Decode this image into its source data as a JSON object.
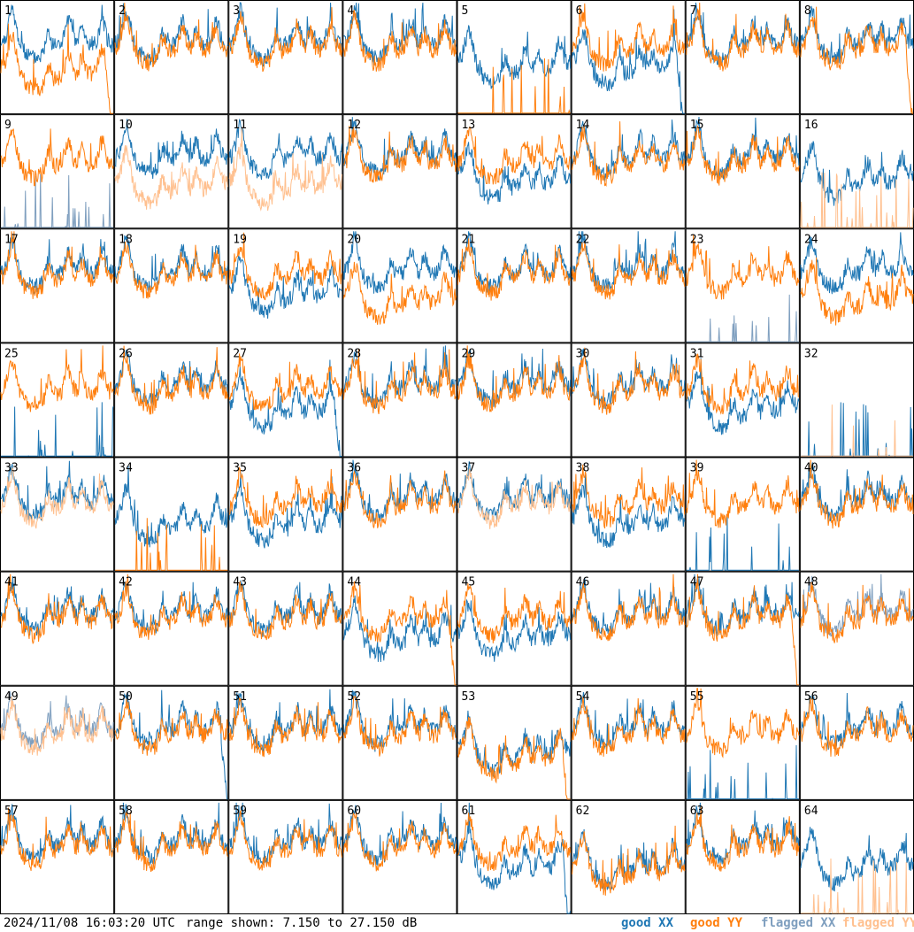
{
  "footer": {
    "timestamp": "2024/11/08 16:03:20 UTC",
    "range_text": "range shown: 7.150 to 27.150 dB"
  },
  "legend": [
    {
      "label": "good XX",
      "color": "#1f77b4"
    },
    {
      "label": "good YY",
      "color": "#ff7f0e"
    },
    {
      "label": "flagged XX",
      "color": "#7f9fbf"
    },
    {
      "label": "flagged YY",
      "color": "#ffc08f"
    }
  ],
  "chart_data": {
    "type": "line",
    "layout": "8x8 small multiples",
    "panels": 64,
    "ylim": [
      7.15,
      27.15
    ],
    "y_unit": "dB",
    "grid": false,
    "panel_ids": [
      1,
      2,
      3,
      4,
      5,
      6,
      7,
      8,
      9,
      10,
      11,
      12,
      13,
      14,
      15,
      16,
      17,
      18,
      19,
      20,
      21,
      22,
      23,
      24,
      25,
      26,
      27,
      28,
      29,
      30,
      31,
      32,
      33,
      34,
      35,
      36,
      37,
      38,
      39,
      40,
      41,
      42,
      43,
      44,
      45,
      46,
      47,
      48,
      49,
      50,
      51,
      52,
      53,
      54,
      55,
      56,
      57,
      58,
      59,
      60,
      61,
      62,
      63,
      64
    ],
    "series_styles": {
      "good_xx": "#1f77b4",
      "good_yy": "#ff7f0e",
      "flagged_xx": "#7f9fbf",
      "flagged_yy": "#ffc08f"
    },
    "panel_states": {
      "flagged_xx": [
        9,
        23,
        48,
        49
      ],
      "flagged_yy": [
        10,
        11,
        16,
        32,
        33,
        37,
        49,
        64
      ],
      "xx_sparse_spikes": [
        9,
        23,
        25,
        32,
        39,
        55
      ],
      "yy_sparse_spikes": [
        5,
        16,
        32,
        34,
        64
      ],
      "xx_low_trace": [
        5,
        6,
        13,
        16,
        19,
        27,
        31,
        34,
        35,
        38,
        44,
        45,
        53,
        61,
        62,
        64
      ],
      "yy_low_trace": [
        1,
        10,
        11,
        20,
        24,
        53,
        62
      ],
      "xx_rolloff": [
        6,
        27,
        50,
        61
      ],
      "yy_rolloff": [
        1,
        8,
        44,
        47,
        53
      ]
    }
  }
}
